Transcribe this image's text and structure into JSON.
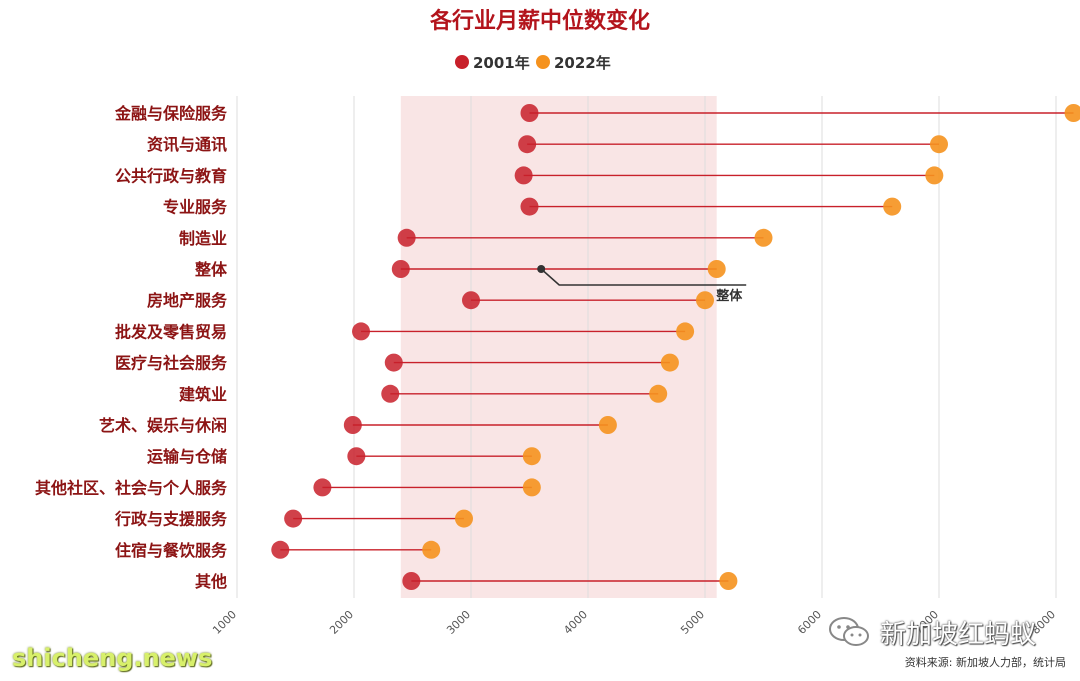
{
  "colors": {
    "title": "#b3141c",
    "label": "#8c1414",
    "series_2001": "#c8202a",
    "series_2022": "#f5921e",
    "band": "#f7dcdc",
    "grid": "#dddddd",
    "connector": "#c8202a",
    "annotation": "#333333"
  },
  "chart_data": {
    "type": "dumbbell",
    "title": "各行业月薪中位数变化",
    "xlabel": "",
    "ylabel": "",
    "xlim": [
      1000,
      8000
    ],
    "xticks": [
      1000,
      2000,
      3000,
      4000,
      5000,
      6000,
      7000,
      8000
    ],
    "xtick_labels": [
      "1000",
      "2000",
      "3000",
      "4000",
      "5000",
      "6000",
      "7000",
      "8000"
    ],
    "legend_position": "top-center",
    "series": [
      {
        "name": "2001年",
        "color": "#c8202a"
      },
      {
        "name": "2022年",
        "color": "#f5921e"
      }
    ],
    "categories": [
      "金融与保险服务",
      "资讯与通讯",
      "公共行政与教育",
      "专业服务",
      "制造业",
      "整体",
      "房地产服务",
      "批发及零售贸易",
      "医疗与社会服务",
      "建筑业",
      "艺术、娱乐与休闲",
      "运输与仓储",
      "其他社区、社会与个人服务",
      "行政与支援服务",
      "住宿与餐饮服务",
      "其他"
    ],
    "values_2001": [
      3500,
      3480,
      3450,
      3500,
      2450,
      2400,
      3000,
      2060,
      2340,
      2310,
      1990,
      2020,
      1730,
      1480,
      1370,
      2490
    ],
    "values_2022": [
      8150,
      7000,
      6960,
      6600,
      5500,
      5100,
      5000,
      4830,
      4700,
      4600,
      4170,
      3520,
      3520,
      2940,
      2660,
      5200
    ],
    "highlight_band": {
      "label": "整体",
      "from": 2400,
      "to": 5100
    },
    "annotation": {
      "text": "整体",
      "x": 3600,
      "category": "整体"
    }
  },
  "watermarks": {
    "channel_name": "新加坡红蚂蚁",
    "site": "shicheng.news"
  },
  "source_note": "资料来源: 新加坡人力部，统计局"
}
